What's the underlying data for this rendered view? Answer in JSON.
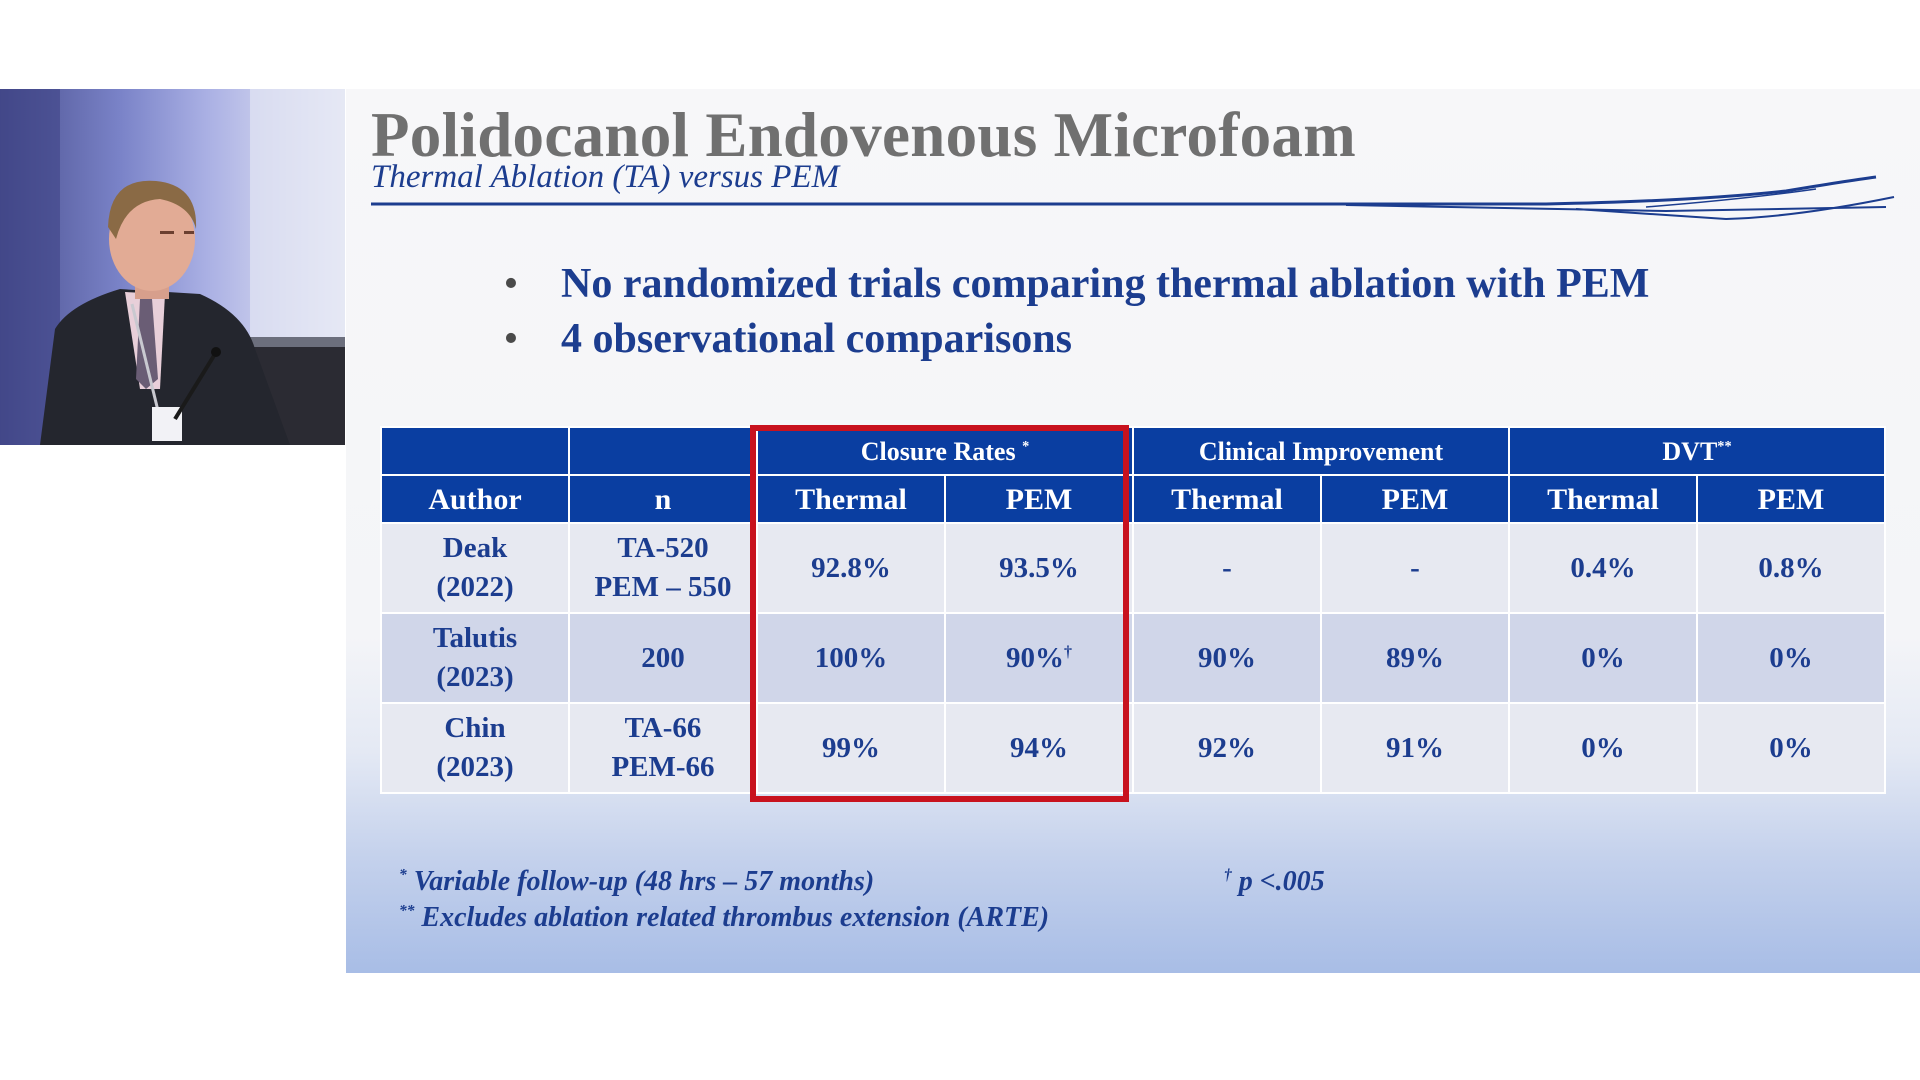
{
  "slide": {
    "title": "Polidocanol Endovenous Microfoam",
    "subtitle": "Thermal Ablation (TA) versus PEM",
    "bullets": [
      "No randomized trials comparing thermal ablation with PEM",
      "4 observational comparisons"
    ],
    "bullet_glyph": "•"
  },
  "table": {
    "group_headers": {
      "closure": "Closure Rates",
      "closure_mark": "*",
      "clinical": "Clinical Improvement",
      "dvt": "DVT",
      "dvt_mark": "**"
    },
    "columns": [
      "Author",
      "n",
      "Thermal",
      "PEM",
      "Thermal",
      "PEM",
      "Thermal",
      "PEM"
    ],
    "rows": [
      {
        "author": [
          "Deak",
          "(2022)"
        ],
        "n": [
          "TA-520",
          "PEM – 550"
        ],
        "closure_thermal": "92.8%",
        "closure_pem": "93.5%",
        "closure_pem_mark": "",
        "clinical_thermal": "-",
        "clinical_pem": "-",
        "dvt_thermal": "0.4%",
        "dvt_pem": "0.8%"
      },
      {
        "author": [
          "Talutis",
          "(2023)"
        ],
        "n": [
          "200",
          ""
        ],
        "closure_thermal": "100%",
        "closure_pem": "90%",
        "closure_pem_mark": "†",
        "clinical_thermal": "90%",
        "clinical_pem": "89%",
        "dvt_thermal": "0%",
        "dvt_pem": "0%"
      },
      {
        "author": [
          "Chin",
          "(2023)"
        ],
        "n": [
          "TA-66",
          "PEM-66"
        ],
        "closure_thermal": "99%",
        "closure_pem": "94%",
        "closure_pem_mark": "",
        "clinical_thermal": "92%",
        "clinical_pem": "91%",
        "dvt_thermal": "0%",
        "dvt_pem": "0%"
      }
    ],
    "highlight_color": "#c8121e",
    "header_color": "#0a3ea1"
  },
  "footnotes": {
    "note1_mark": "*",
    "note1": "Variable follow-up  (48 hrs – 57 months)",
    "note2_mark": "**",
    "note2": "Excludes ablation related thrombus extension (ARTE)",
    "note3_mark": "†",
    "note3": "p <.005"
  },
  "colors": {
    "title_gray": "#707070",
    "text_blue": "#1c3d8f"
  }
}
